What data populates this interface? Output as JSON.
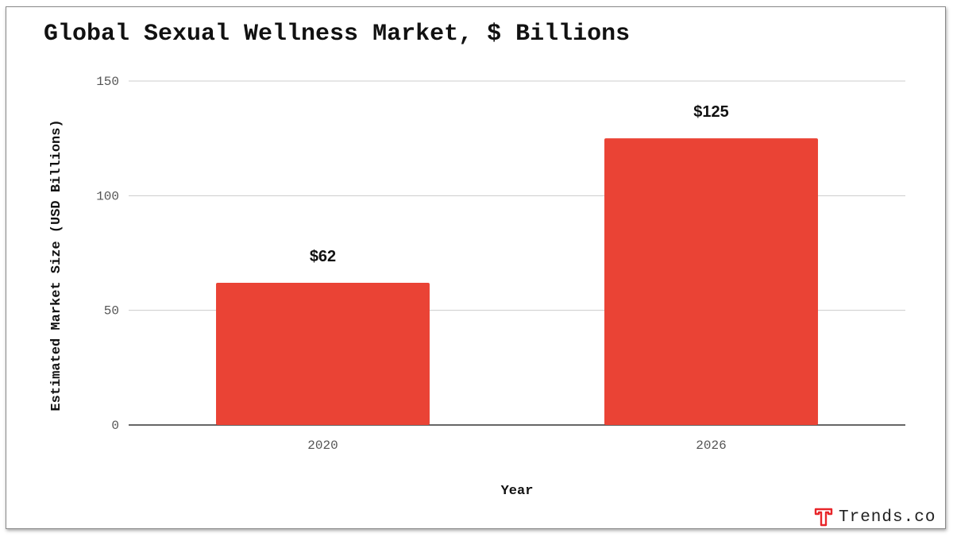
{
  "chart_data": {
    "type": "bar",
    "title": "Global Sexual Wellness Market, $ Billions",
    "xlabel": "Year",
    "ylabel": "Estimated Market Size (USD Billions)",
    "categories": [
      "2020",
      "2026"
    ],
    "values": [
      62,
      125
    ],
    "data_labels": [
      "$62",
      "$125"
    ],
    "ylim": [
      0,
      150
    ],
    "yticks": [
      0,
      50,
      100,
      150
    ],
    "grid": true,
    "legend": "none",
    "bar_color": "#EA4335"
  },
  "brand": {
    "name": "Trends.co",
    "logo_icon": "t-logo-icon",
    "logo_color": "#E8262A"
  }
}
